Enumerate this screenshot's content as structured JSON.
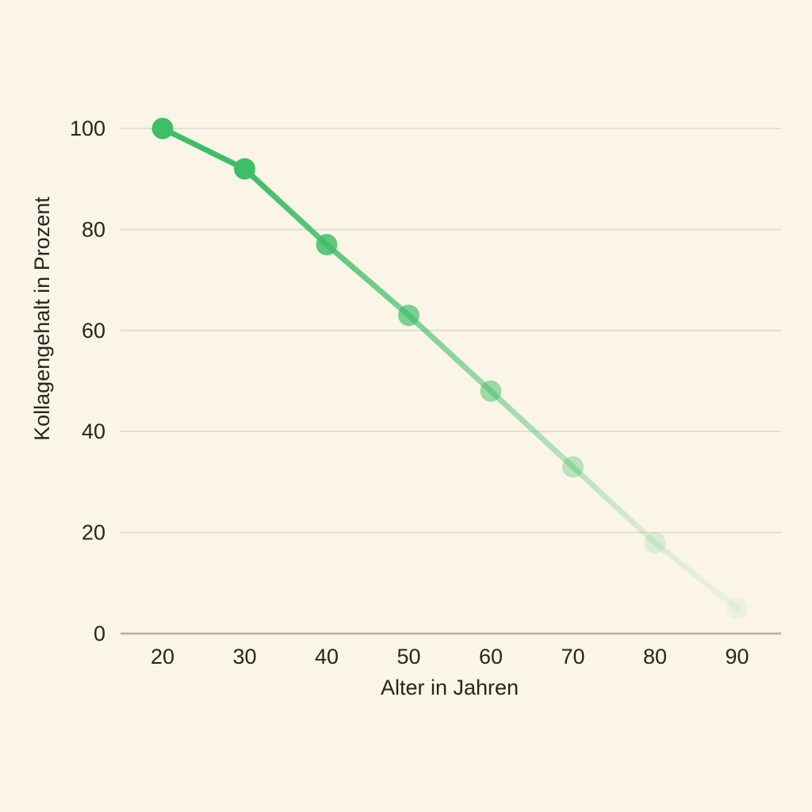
{
  "chart_data": {
    "type": "line",
    "title": "",
    "xlabel": "Alter in Jahren",
    "ylabel": "Kollagengehalt in Prozent",
    "x": [
      20,
      30,
      40,
      50,
      60,
      70,
      80,
      90
    ],
    "values": [
      100,
      92,
      77,
      63,
      48,
      33,
      18,
      5
    ],
    "x_ticks": [
      "20",
      "30",
      "40",
      "50",
      "60",
      "70",
      "80",
      "90"
    ],
    "y_ticks": [
      "0",
      "20",
      "40",
      "60",
      "80",
      "100"
    ],
    "y_tick_values": [
      0,
      20,
      40,
      60,
      80,
      100
    ],
    "xlim": [
      15,
      95
    ],
    "ylim": [
      0,
      100
    ],
    "grid": "horizontal",
    "legend": "none",
    "line_color": "#3ebe69",
    "point_fade_opacities": [
      1,
      1,
      0.84,
      0.67,
      0.5,
      0.34,
      0.16,
      0.07
    ],
    "background_color": "#faf5e7",
    "gridline_color": "#dcdad0",
    "axis_line_color": "#b2afa3",
    "text_color": "#26251f"
  }
}
